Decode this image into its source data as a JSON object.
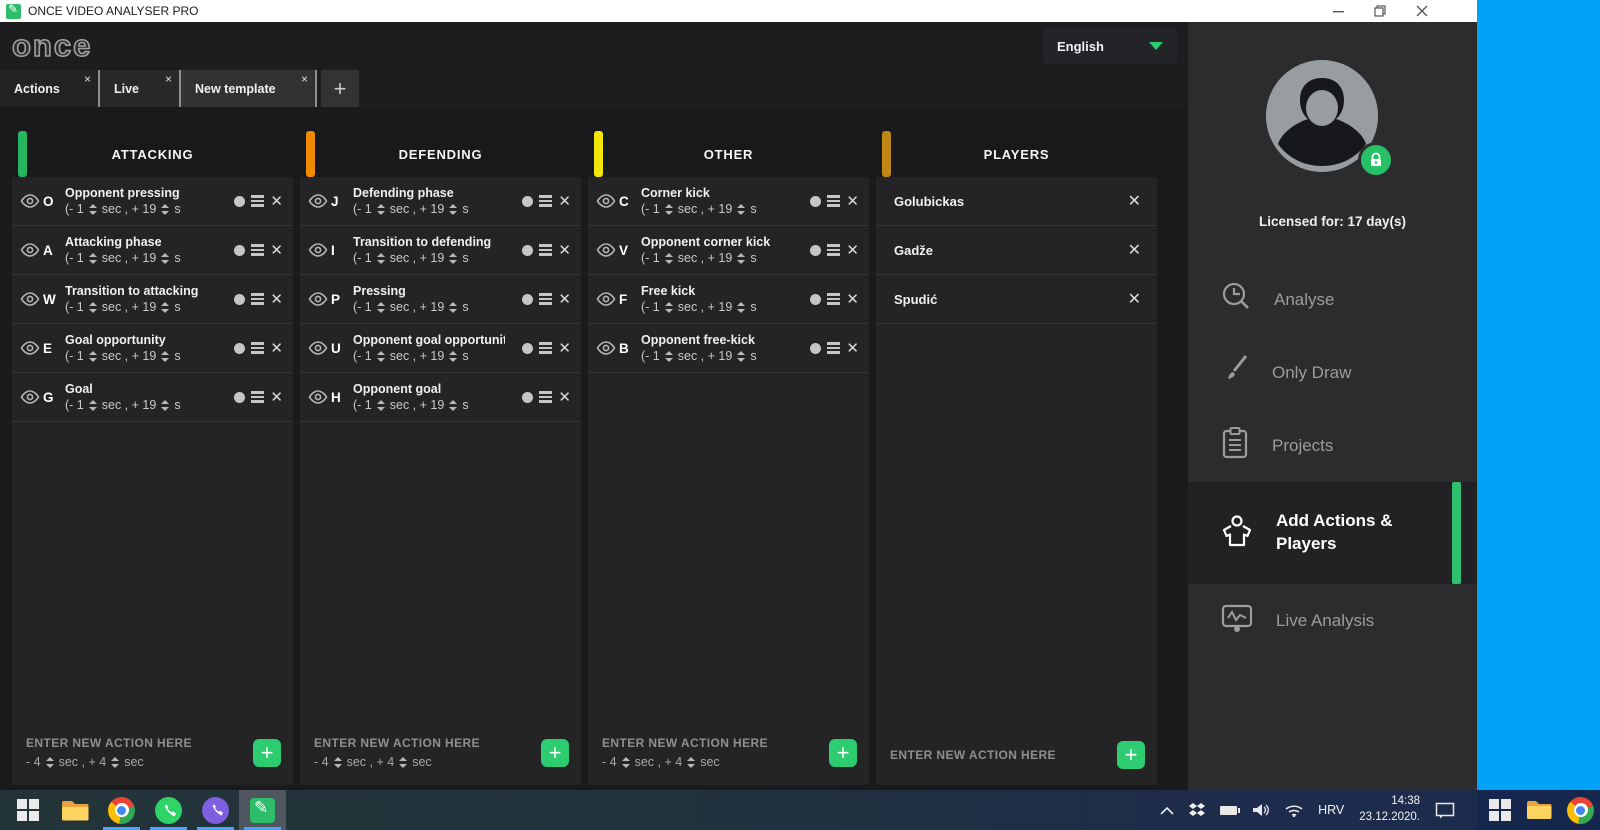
{
  "window": {
    "title": "ONCE VIDEO ANALYSER PRO"
  },
  "header": {
    "logo": "once",
    "language": "English"
  },
  "tabs": [
    {
      "label": "Actions"
    },
    {
      "label": "Live"
    },
    {
      "label": "New template"
    }
  ],
  "new_tab_button": "+",
  "columns": [
    {
      "title": "ATTACKING",
      "accent": "#27b561",
      "type": "actions",
      "time": {
        "pre": "(- 1",
        "mid": "sec , + 19",
        "tail": "s"
      },
      "items": [
        {
          "hotkey": "O",
          "name": "Opponent pressing"
        },
        {
          "hotkey": "A",
          "name": "Attacking phase"
        },
        {
          "hotkey": "W",
          "name": "Transition to attacking"
        },
        {
          "hotkey": "E",
          "name": "Goal opportunity"
        },
        {
          "hotkey": "G",
          "name": "Goal"
        }
      ],
      "footer": {
        "placeholder": "ENTER NEW ACTION HERE",
        "pre": "- 4",
        "mid": "sec , + 4",
        "tail": "sec"
      }
    },
    {
      "title": "DEFENDING",
      "accent": "#f28a00",
      "type": "actions",
      "time": {
        "pre": "(- 1",
        "mid": "sec , + 19",
        "tail": "s"
      },
      "items": [
        {
          "hotkey": "J",
          "name": "Defending phase"
        },
        {
          "hotkey": "I",
          "name": "Transition to defending"
        },
        {
          "hotkey": "P",
          "name": "Pressing"
        },
        {
          "hotkey": "U",
          "name": "Opponent goal opportunity"
        },
        {
          "hotkey": "H",
          "name": "Opponent goal"
        }
      ],
      "footer": {
        "placeholder": "ENTER NEW ACTION HERE",
        "pre": "- 4",
        "mid": "sec , + 4",
        "tail": "sec"
      }
    },
    {
      "title": "OTHER",
      "accent": "#f2e50c",
      "type": "actions",
      "time": {
        "pre": "(- 1",
        "mid": "sec , + 19",
        "tail": "s"
      },
      "items": [
        {
          "hotkey": "C",
          "name": "Corner kick"
        },
        {
          "hotkey": "V",
          "name": "Opponent corner kick"
        },
        {
          "hotkey": "F",
          "name": "Free kick"
        },
        {
          "hotkey": "B",
          "name": "Opponent free-kick"
        }
      ],
      "footer": {
        "placeholder": "ENTER NEW ACTION HERE",
        "pre": "- 4",
        "mid": "sec , + 4",
        "tail": "sec"
      }
    },
    {
      "title": "PLAYERS",
      "accent": "#bf8718",
      "type": "players",
      "items": [
        {
          "name": "Golubickas"
        },
        {
          "name": "Gadže"
        },
        {
          "name": "Spudić"
        }
      ],
      "footer": {
        "placeholder": "ENTER NEW ACTION HERE"
      }
    }
  ],
  "sidebar": {
    "license": "Licensed for:  17 day(s)",
    "menu": [
      {
        "id": "analyse",
        "label": "Analyse",
        "icon": "clock-magnifier-icon",
        "active": false
      },
      {
        "id": "only-draw",
        "label": "Only Draw",
        "icon": "brush-icon",
        "active": false
      },
      {
        "id": "projects",
        "label": "Projects",
        "icon": "clipboard-icon",
        "active": false
      },
      {
        "id": "add-actions-players",
        "label": "Add Actions & Players",
        "icon": "jersey-icon",
        "active": true
      },
      {
        "id": "live-analysis",
        "label": "Live Analysis",
        "icon": "monitor-pulse-icon",
        "active": false
      }
    ]
  },
  "taskbar": {
    "apps": [
      {
        "name": "start",
        "running": false,
        "active": false
      },
      {
        "name": "file-explorer",
        "running": false,
        "active": false
      },
      {
        "name": "chrome",
        "running": true,
        "active": false
      },
      {
        "name": "whatsapp",
        "running": true,
        "active": false
      },
      {
        "name": "viber",
        "running": true,
        "active": false
      },
      {
        "name": "once-app",
        "running": true,
        "active": true
      }
    ],
    "tray": {
      "language": "HRV",
      "time": "14:38",
      "date": "23.12.2020."
    }
  },
  "display2": {
    "taskbar_apps": [
      "start",
      "file-explorer",
      "chrome"
    ]
  }
}
